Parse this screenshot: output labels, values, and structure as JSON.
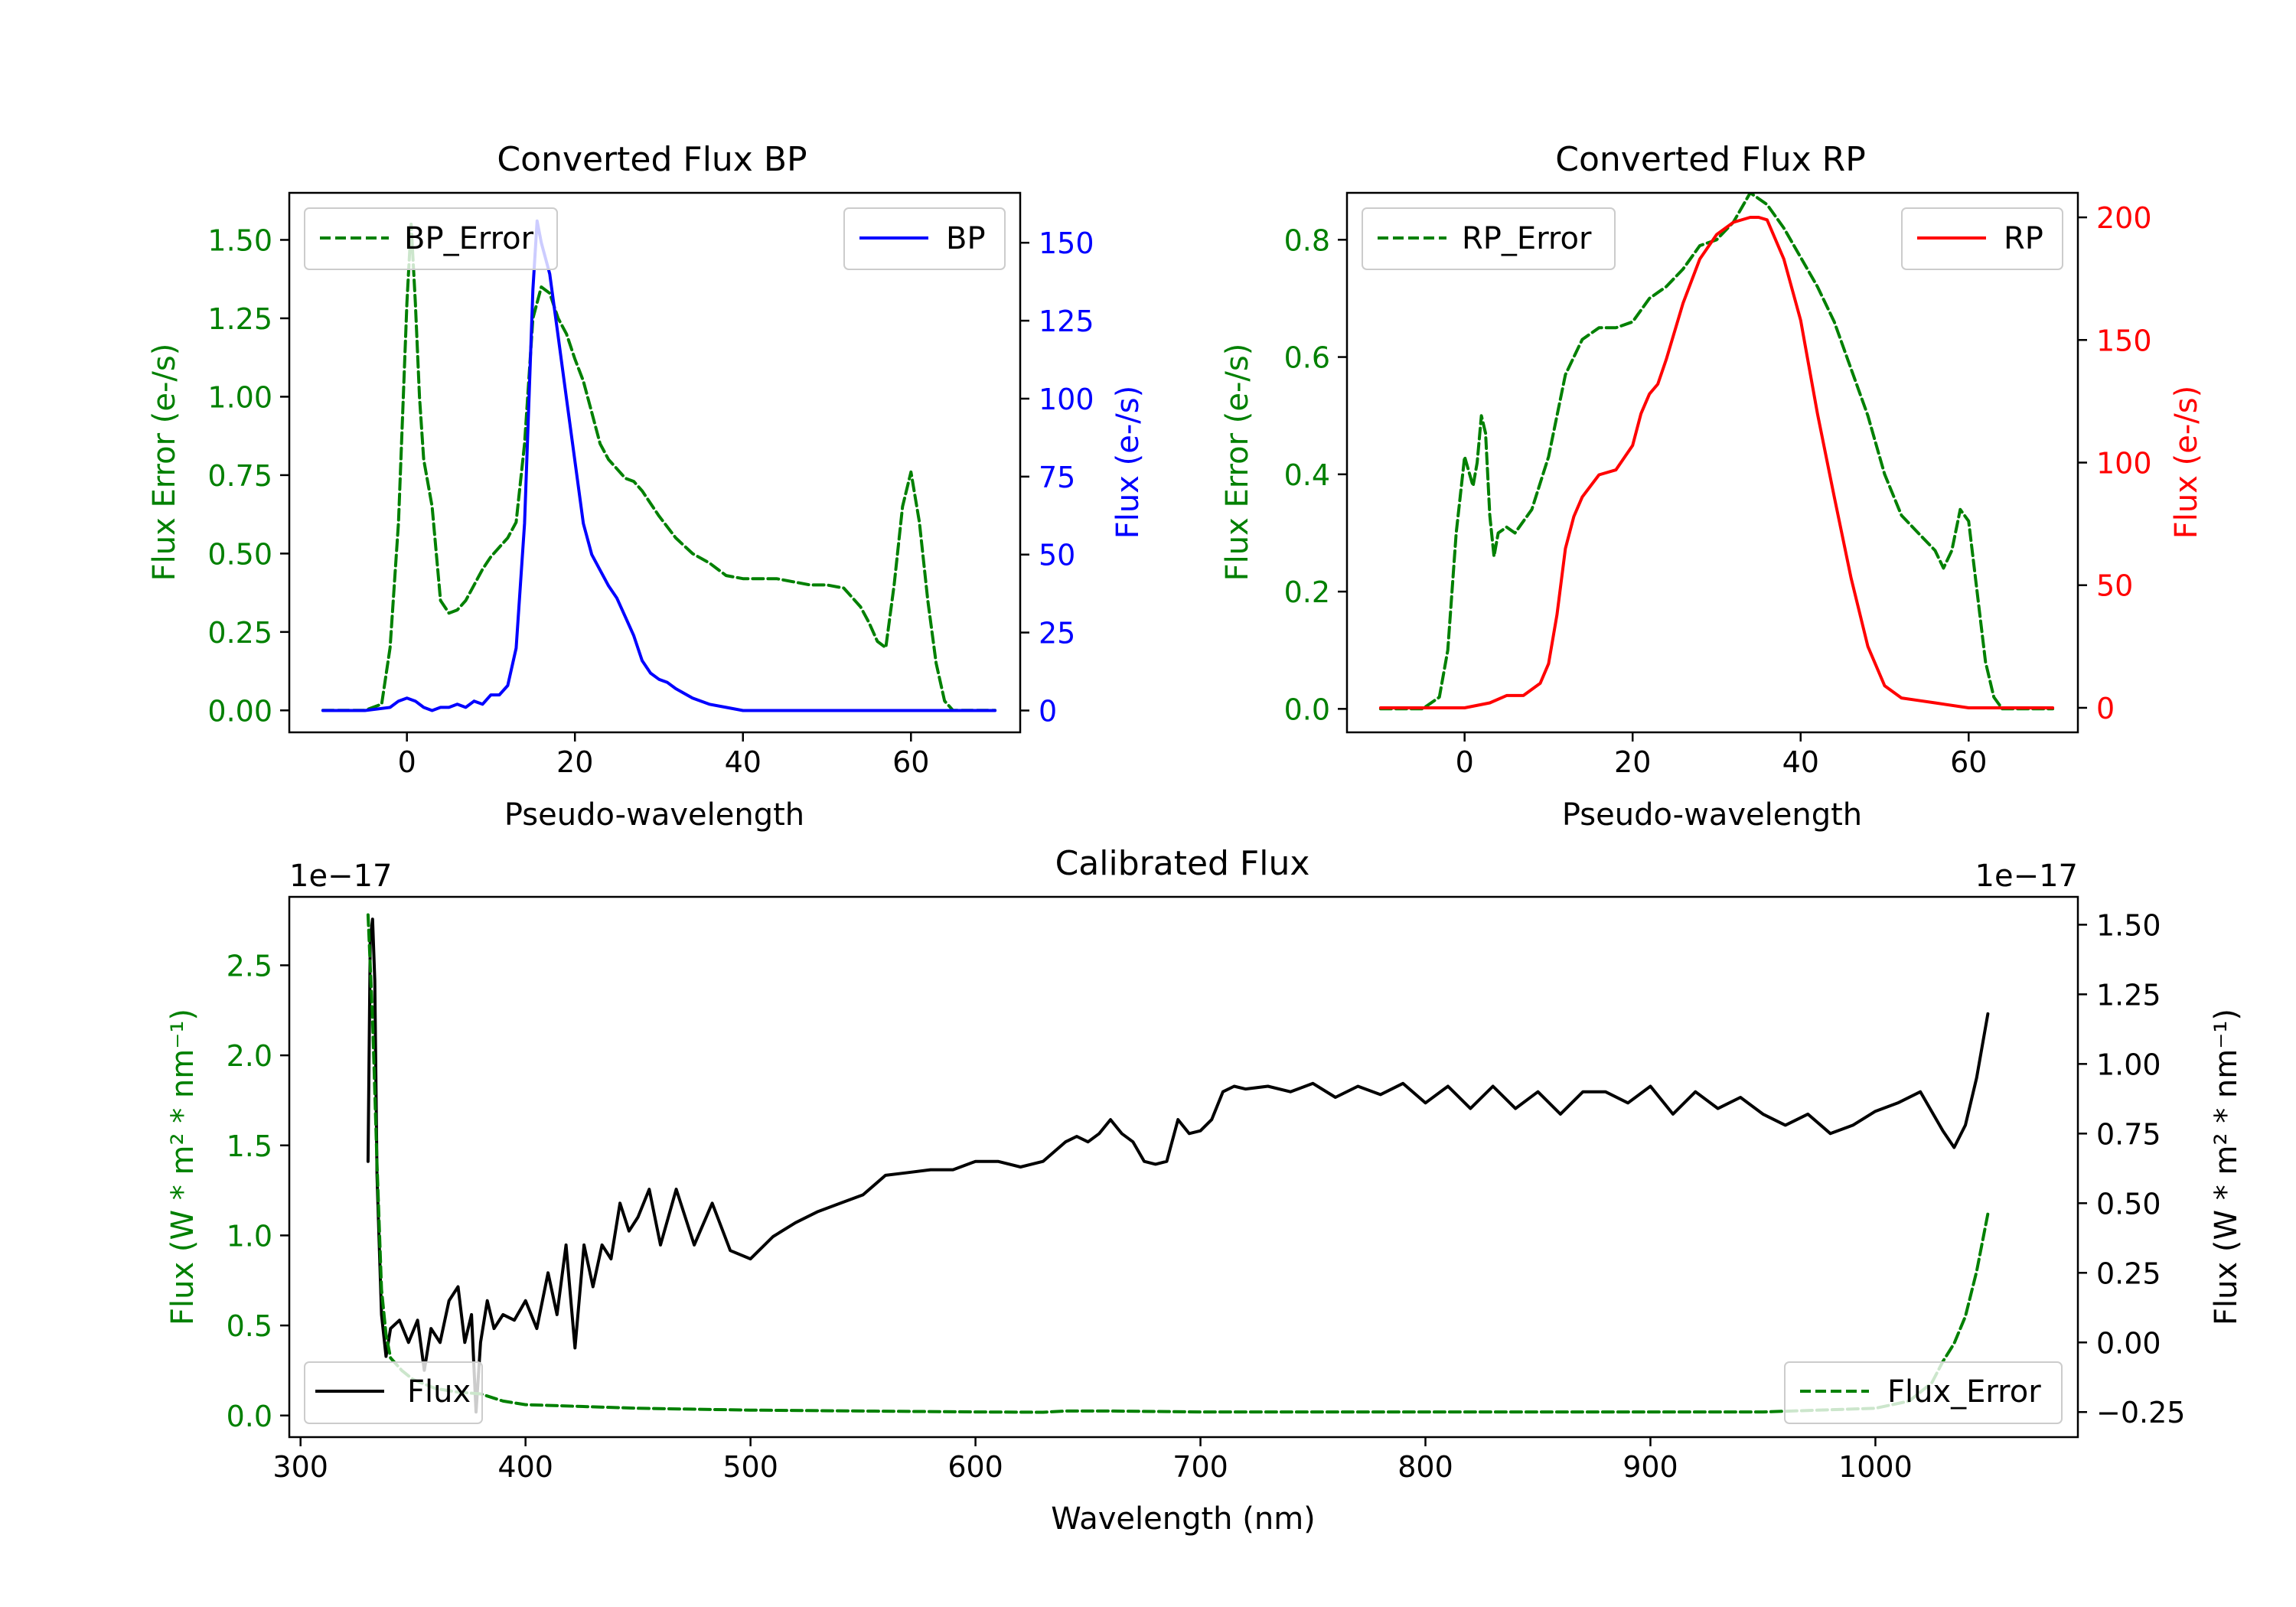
{
  "chart_data": [
    {
      "type": "line",
      "title": "Converted Flux BP",
      "xlabel": "Pseudo-wavelength",
      "ylabel_left": "Flux Error (e-/s)",
      "ylabel_right": "Flux (e-/s)",
      "xlim": [
        -14,
        73
      ],
      "ylim_left": [
        -0.07,
        1.65
      ],
      "ylim_right": [
        -7,
        166
      ],
      "xticks": [
        0,
        20,
        40,
        60
      ],
      "yticks_left": [
        0.0,
        0.25,
        0.5,
        0.75,
        1.0,
        1.25,
        1.5
      ],
      "ytick_labels_left": [
        "0.00",
        "0.25",
        "0.50",
        "0.75",
        "1.00",
        "1.25",
        "1.50"
      ],
      "yticks_right": [
        0,
        25,
        50,
        75,
        100,
        125,
        150
      ],
      "ytick_labels_right": [
        "0",
        "25",
        "50",
        "75",
        "100",
        "125",
        "150"
      ],
      "legend_left": "top-left",
      "legend_right": "top-right",
      "colors": {
        "left": "#008000",
        "right": "#0000ff"
      },
      "series": [
        {
          "name": "BP_Error",
          "axis": "left",
          "color": "#008000",
          "style": "dashed",
          "x": [
            -10,
            -5,
            -3,
            -2,
            -1,
            0,
            0.5,
            1,
            1.5,
            2,
            3,
            3.5,
            4,
            5,
            6,
            7,
            8,
            9,
            10,
            11,
            12,
            13,
            14,
            15,
            16,
            17,
            18,
            19,
            20,
            21,
            22,
            23,
            24,
            25,
            26,
            27,
            28,
            30,
            32,
            34,
            36,
            38,
            40,
            42,
            44,
            46,
            48,
            50,
            52,
            54,
            55,
            56,
            57,
            58,
            59,
            60,
            61,
            62,
            63,
            64,
            65,
            66,
            68,
            70
          ],
          "y": [
            0,
            0,
            0.02,
            0.2,
            0.6,
            1.3,
            1.55,
            1.3,
            1.0,
            0.8,
            0.65,
            0.5,
            0.35,
            0.31,
            0.32,
            0.35,
            0.4,
            0.45,
            0.49,
            0.52,
            0.55,
            0.6,
            0.85,
            1.25,
            1.35,
            1.33,
            1.25,
            1.2,
            1.12,
            1.05,
            0.95,
            0.85,
            0.8,
            0.77,
            0.74,
            0.73,
            0.7,
            0.62,
            0.55,
            0.5,
            0.47,
            0.43,
            0.42,
            0.42,
            0.42,
            0.41,
            0.4,
            0.4,
            0.39,
            0.33,
            0.28,
            0.22,
            0.2,
            0.4,
            0.65,
            0.76,
            0.6,
            0.35,
            0.15,
            0.03,
            0.0,
            0.0,
            0.0,
            0.0
          ]
        },
        {
          "name": "BP",
          "axis": "right",
          "color": "#0000ff",
          "style": "solid",
          "x": [
            -10,
            -5,
            -2,
            -1,
            0,
            1,
            2,
            3,
            4,
            5,
            6,
            7,
            8,
            9,
            10,
            11,
            12,
            13,
            14,
            15,
            15.5,
            16,
            17,
            18,
            19,
            20,
            21,
            22,
            23,
            24,
            25,
            26,
            27,
            28,
            29,
            30,
            31,
            32,
            34,
            36,
            38,
            40,
            45,
            50,
            55,
            60,
            65,
            70
          ],
          "y": [
            0,
            0,
            1,
            3,
            4,
            3,
            1,
            0,
            1,
            1,
            2,
            1,
            3,
            2,
            5,
            5,
            8,
            20,
            60,
            135,
            157,
            150,
            140,
            120,
            100,
            80,
            60,
            50,
            45,
            40,
            36,
            30,
            24,
            16,
            12,
            10,
            9,
            7,
            4,
            2,
            1,
            0,
            0,
            0,
            0,
            0,
            0,
            0
          ]
        }
      ]
    },
    {
      "type": "line",
      "title": "Converted Flux RP",
      "xlabel": "Pseudo-wavelength",
      "ylabel_left": "Flux Error (e-/s)",
      "ylabel_right": "Flux (e-/s)",
      "xlim": [
        -14,
        73
      ],
      "ylim_left": [
        -0.04,
        0.88
      ],
      "ylim_right": [
        -10,
        210
      ],
      "xticks": [
        0,
        20,
        40,
        60
      ],
      "yticks_left": [
        0.0,
        0.2,
        0.4,
        0.6,
        0.8
      ],
      "ytick_labels_left": [
        "0.0",
        "0.2",
        "0.4",
        "0.6",
        "0.8"
      ],
      "yticks_right": [
        0,
        50,
        100,
        150,
        200
      ],
      "ytick_labels_right": [
        "0",
        "50",
        "100",
        "150",
        "200"
      ],
      "legend_left": "top-left",
      "legend_right": "top-right",
      "colors": {
        "left": "#008000",
        "right": "#ff0000"
      },
      "series": [
        {
          "name": "RP_Error",
          "axis": "left",
          "color": "#008000",
          "style": "dashed",
          "x": [
            -10,
            -5,
            -3,
            -2,
            -1,
            0,
            1,
            1.5,
            2,
            2.5,
            3,
            3.5,
            4,
            5,
            6,
            8,
            10,
            12,
            14,
            16,
            18,
            20,
            22,
            24,
            26,
            28,
            30,
            32,
            34,
            36,
            38,
            40,
            42,
            44,
            46,
            48,
            50,
            52,
            54,
            56,
            57,
            58,
            59,
            60,
            61,
            62,
            63,
            64,
            66,
            70
          ],
          "y": [
            0,
            0,
            0.02,
            0.1,
            0.3,
            0.43,
            0.38,
            0.42,
            0.5,
            0.47,
            0.33,
            0.26,
            0.3,
            0.31,
            0.3,
            0.34,
            0.43,
            0.57,
            0.63,
            0.65,
            0.65,
            0.66,
            0.7,
            0.72,
            0.75,
            0.79,
            0.8,
            0.83,
            0.88,
            0.86,
            0.82,
            0.77,
            0.72,
            0.66,
            0.58,
            0.5,
            0.4,
            0.33,
            0.3,
            0.27,
            0.24,
            0.27,
            0.34,
            0.32,
            0.2,
            0.08,
            0.02,
            0.0,
            0.0,
            0.0
          ]
        },
        {
          "name": "RP",
          "axis": "right",
          "color": "#ff0000",
          "style": "solid",
          "x": [
            -10,
            -5,
            0,
            3,
            5,
            7,
            9,
            10,
            11,
            12,
            13,
            14,
            16,
            18,
            20,
            21,
            22,
            23,
            24,
            26,
            28,
            30,
            32,
            34,
            35,
            36,
            38,
            40,
            42,
            44,
            46,
            48,
            50,
            52,
            54,
            56,
            60,
            65,
            70
          ],
          "y": [
            0,
            0,
            0,
            2,
            5,
            5,
            10,
            18,
            38,
            65,
            78,
            86,
            95,
            97,
            107,
            120,
            128,
            132,
            142,
            165,
            183,
            193,
            198,
            200,
            200,
            199,
            183,
            158,
            120,
            86,
            53,
            25,
            9,
            4,
            3,
            2,
            0,
            0,
            0
          ]
        }
      ]
    },
    {
      "type": "line",
      "title": "Calibrated Flux",
      "xlabel": "Wavelength (nm)",
      "ylabel_left": "Flux (W * m² * nm⁻¹)",
      "ylabel_right": "Flux (W * m² * nm⁻¹)",
      "offset_left": "1e−17",
      "offset_right": "1e−17",
      "xlim": [
        295,
        1090
      ],
      "ylim_left": [
        -0.12,
        2.88
      ],
      "ylim_right": [
        -0.34,
        1.6
      ],
      "xticks": [
        300,
        400,
        500,
        600,
        700,
        800,
        900,
        1000
      ],
      "yticks_left": [
        0.0,
        0.5,
        1.0,
        1.5,
        2.0,
        2.5
      ],
      "ytick_labels_left": [
        "0.0",
        "0.5",
        "1.0",
        "1.5",
        "2.0",
        "2.5"
      ],
      "yticks_right": [
        -0.25,
        0.0,
        0.25,
        0.5,
        0.75,
        1.0,
        1.25,
        1.5
      ],
      "ytick_labels_right": [
        "−0.25",
        "0.00",
        "0.25",
        "0.50",
        "0.75",
        "1.00",
        "1.25",
        "1.50"
      ],
      "legend_left": "bottom-left",
      "legend_right": "bottom-right",
      "colors": {
        "left": "#008000",
        "right": "#000000"
      },
      "series": [
        {
          "name": "Flux",
          "axis": "right",
          "color": "#000000",
          "style": "solid",
          "x": [
            330,
            331,
            332,
            333,
            334,
            336,
            338,
            340,
            344,
            348,
            352,
            355,
            358,
            362,
            366,
            370,
            373,
            376,
            378,
            380,
            383,
            386,
            390,
            395,
            400,
            405,
            410,
            414,
            418,
            422,
            426,
            430,
            434,
            438,
            442,
            446,
            450,
            455,
            460,
            467,
            475,
            483,
            491,
            500,
            510,
            520,
            530,
            540,
            550,
            560,
            570,
            580,
            590,
            600,
            610,
            620,
            630,
            640,
            645,
            650,
            655,
            660,
            665,
            670,
            675,
            680,
            685,
            690,
            695,
            700,
            705,
            710,
            715,
            720,
            730,
            740,
            750,
            760,
            770,
            780,
            790,
            800,
            810,
            820,
            830,
            840,
            850,
            860,
            870,
            880,
            890,
            900,
            910,
            920,
            930,
            940,
            950,
            960,
            970,
            980,
            990,
            1000,
            1010,
            1020,
            1030,
            1035,
            1040,
            1045,
            1050
          ],
          "y": [
            0.65,
            1.45,
            1.52,
            1.3,
            0.6,
            0.1,
            -0.05,
            0.05,
            0.08,
            0.0,
            0.08,
            -0.1,
            0.05,
            0.0,
            0.15,
            0.2,
            0.0,
            0.1,
            -0.25,
            0.0,
            0.15,
            0.05,
            0.1,
            0.08,
            0.15,
            0.05,
            0.25,
            0.1,
            0.35,
            -0.02,
            0.35,
            0.2,
            0.35,
            0.3,
            0.5,
            0.4,
            0.45,
            0.55,
            0.35,
            0.55,
            0.35,
            0.5,
            0.33,
            0.3,
            0.38,
            0.43,
            0.47,
            0.5,
            0.53,
            0.6,
            0.61,
            0.62,
            0.62,
            0.65,
            0.65,
            0.63,
            0.65,
            0.72,
            0.74,
            0.72,
            0.75,
            0.8,
            0.75,
            0.72,
            0.65,
            0.64,
            0.65,
            0.8,
            0.75,
            0.76,
            0.8,
            0.9,
            0.92,
            0.91,
            0.92,
            0.9,
            0.93,
            0.88,
            0.92,
            0.89,
            0.93,
            0.86,
            0.92,
            0.84,
            0.92,
            0.84,
            0.9,
            0.82,
            0.9,
            0.9,
            0.86,
            0.92,
            0.82,
            0.9,
            0.84,
            0.88,
            0.82,
            0.78,
            0.82,
            0.75,
            0.78,
            0.83,
            0.86,
            0.9,
            0.76,
            0.7,
            0.78,
            0.95,
            1.18
          ]
        },
        {
          "name": "Flux_Error",
          "axis": "left",
          "color": "#008000",
          "style": "dashed",
          "x": [
            330,
            332,
            334,
            336,
            338,
            340,
            345,
            350,
            360,
            370,
            380,
            390,
            400,
            450,
            500,
            550,
            600,
            630,
            640,
            660,
            700,
            750,
            800,
            850,
            900,
            950,
            1000,
            1015,
            1025,
            1030,
            1035,
            1040,
            1045,
            1050
          ],
          "y": [
            2.78,
            2.2,
            1.4,
            0.7,
            0.45,
            0.32,
            0.25,
            0.2,
            0.15,
            0.13,
            0.12,
            0.08,
            0.06,
            0.04,
            0.03,
            0.025,
            0.02,
            0.018,
            0.025,
            0.025,
            0.02,
            0.02,
            0.02,
            0.02,
            0.02,
            0.02,
            0.04,
            0.08,
            0.18,
            0.3,
            0.4,
            0.55,
            0.8,
            1.12
          ]
        }
      ]
    }
  ]
}
